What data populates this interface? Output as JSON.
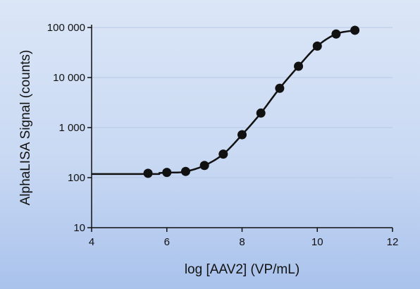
{
  "chart_data": {
    "type": "scatter",
    "title": "",
    "xlabel": "log [AAV2] (VP/mL)",
    "ylabel": "AlphaLISA Signal (counts)",
    "xlim": [
      4,
      12
    ],
    "ylim": [
      10,
      100000
    ],
    "yscale": "log",
    "grid": "horizontal major lines at decades",
    "legend": "none",
    "x_ticks": [
      "4",
      "6",
      "8",
      "10",
      "12"
    ],
    "y_ticks": [
      "10",
      "100",
      "1 000",
      "10 000",
      "100 000"
    ],
    "x_tick_values": [
      4,
      6,
      8,
      10,
      12
    ],
    "y_tick_values": [
      10,
      100,
      1000,
      10000,
      100000
    ],
    "series": [
      {
        "x": [
          5.5,
          6.0,
          6.5,
          7.0,
          7.5,
          8.0,
          8.5,
          9.0,
          9.5,
          10.0,
          10.5,
          11.0
        ],
        "y": [
          122,
          127,
          133,
          175,
          295,
          720,
          1950,
          6100,
          16800,
          42500,
          74000,
          88000
        ],
        "fit": "sigmoidal curve",
        "fit_plateau_low": 118
      }
    ],
    "colors": {
      "marker": "#111111",
      "line": "#111111",
      "grid": "#b8c9e4",
      "axis": "#111111"
    }
  }
}
